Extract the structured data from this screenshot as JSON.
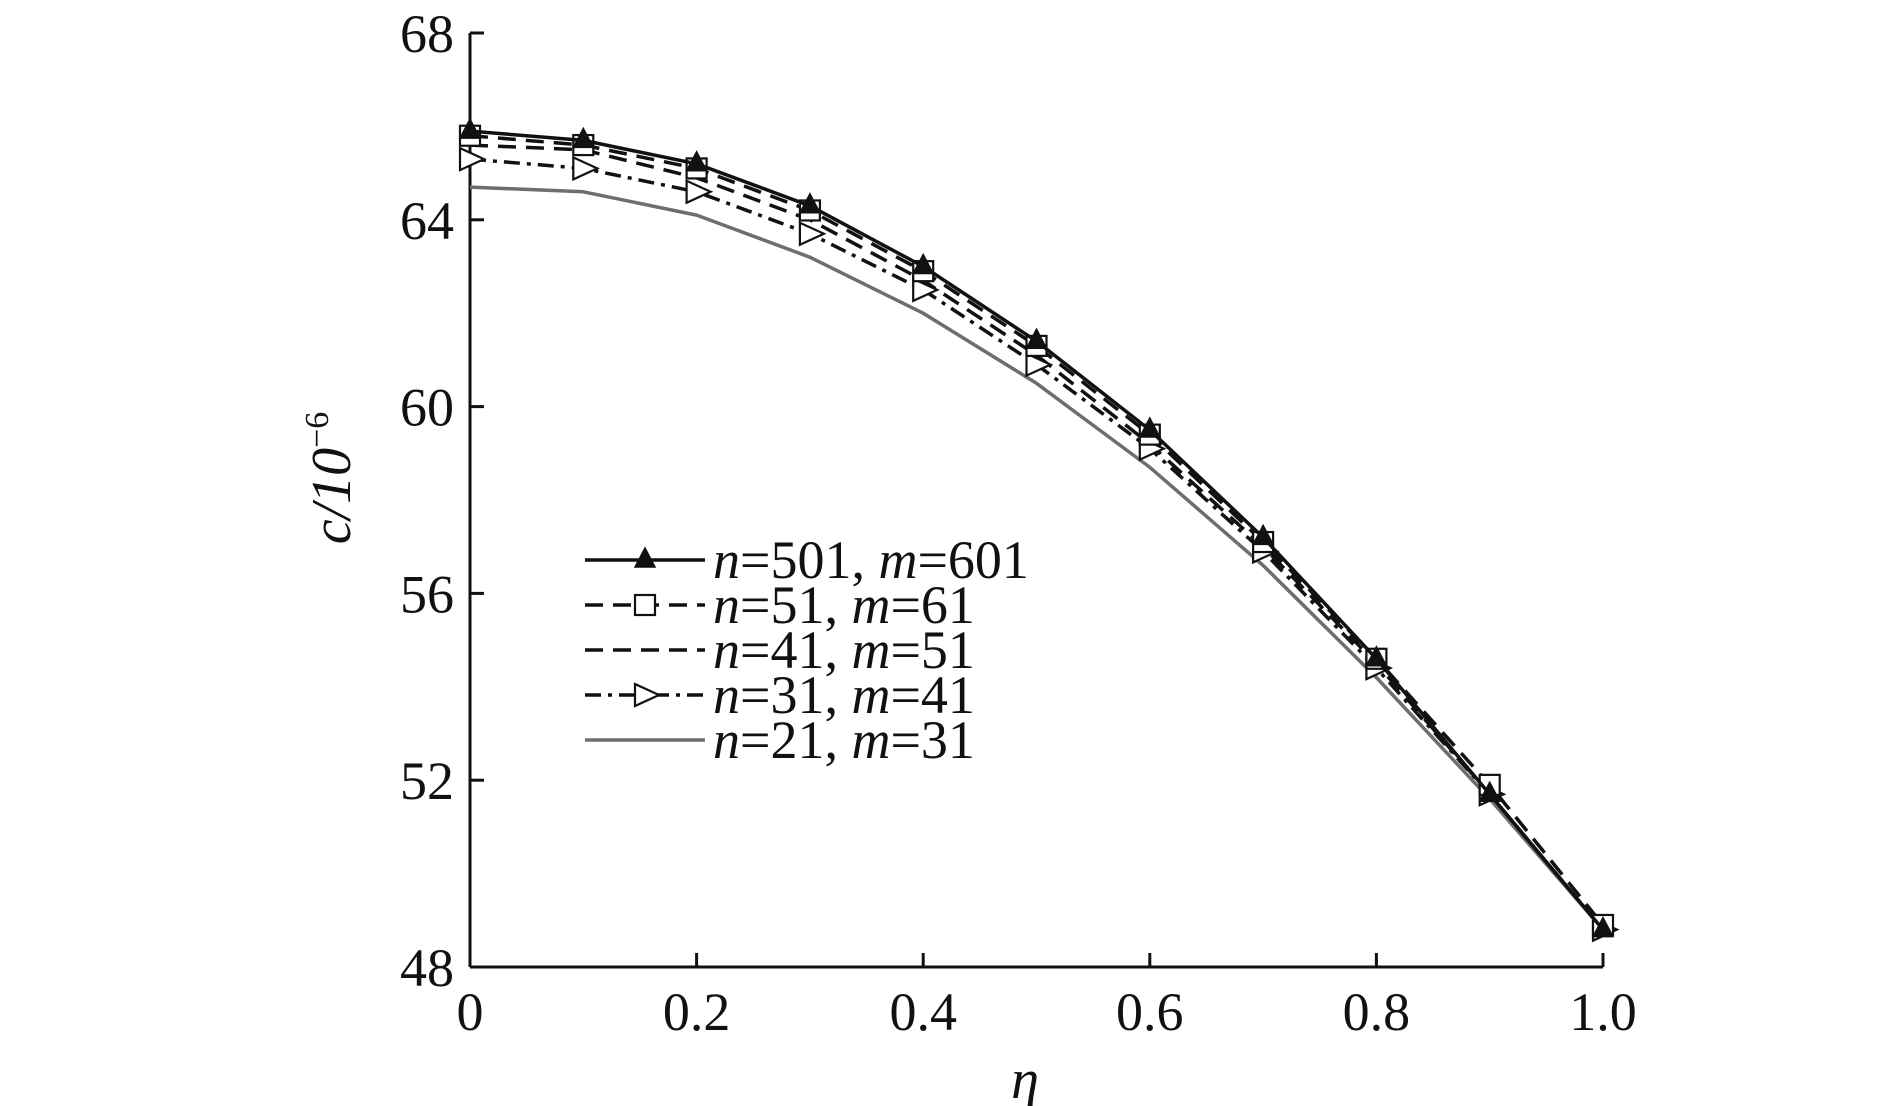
{
  "chart_data": {
    "type": "line",
    "title": "",
    "xlabel": "η",
    "ylabel": "c/10",
    "ylabel_exponent": "−6",
    "xlim": [
      0,
      1.0
    ],
    "ylim": [
      48,
      68
    ],
    "xticks": [
      0,
      0.2,
      0.4,
      0.6,
      0.8,
      1.0
    ],
    "xtick_labels": [
      "0",
      "0.2",
      "0.4",
      "0.6",
      "0.8",
      "1.0"
    ],
    "yticks": [
      48,
      52,
      56,
      60,
      64,
      68
    ],
    "ytick_labels": [
      "48",
      "52",
      "56",
      "60",
      "64",
      "68"
    ],
    "grid": false,
    "legend_position": "left-middle",
    "x": [
      0,
      0.1,
      0.2,
      0.3,
      0.4,
      0.5,
      0.6,
      0.7,
      0.8,
      0.9,
      1.0
    ],
    "series": [
      {
        "name": "n=501, m=601",
        "legend_parts": [
          [
            "n",
            "=501, "
          ],
          [
            "m",
            "=601"
          ]
        ],
        "values": [
          65.9,
          65.7,
          65.2,
          64.3,
          63.0,
          61.4,
          59.5,
          57.2,
          54.6,
          51.7,
          48.8
        ],
        "color": "#111111",
        "dash": "",
        "marker": "triangle-up-filled"
      },
      {
        "name": "n=51, m=61",
        "legend_parts": [
          [
            "n",
            "=51, "
          ],
          [
            "m",
            "=61"
          ]
        ],
        "values": [
          65.8,
          65.6,
          65.1,
          64.2,
          62.9,
          61.3,
          59.4,
          57.1,
          54.6,
          51.9,
          48.9
        ],
        "color": "#111111",
        "dash": "18,10",
        "marker": "square-open"
      },
      {
        "name": "n=41, m=51",
        "legend_parts": [
          [
            "n",
            "=41, "
          ],
          [
            "m",
            "=51"
          ]
        ],
        "values": [
          65.6,
          65.5,
          64.9,
          64.0,
          62.7,
          61.1,
          59.2,
          57.0,
          54.5,
          51.7,
          48.8
        ],
        "color": "#111111",
        "dash": "18,10",
        "marker": "none"
      },
      {
        "name": "n=31, m=41",
        "legend_parts": [
          [
            "n",
            "=31, "
          ],
          [
            "m",
            "=41"
          ]
        ],
        "values": [
          65.3,
          65.1,
          64.6,
          63.7,
          62.5,
          60.9,
          59.1,
          56.9,
          54.4,
          51.7,
          48.8
        ],
        "color": "#111111",
        "dash": "16,7,4,7",
        "marker": "triangle-right-open"
      },
      {
        "name": "n=21, m=31",
        "legend_parts": [
          [
            "n",
            "=21, "
          ],
          [
            "m",
            "=31"
          ]
        ],
        "values": [
          64.7,
          64.6,
          64.1,
          63.2,
          62.0,
          60.5,
          58.7,
          56.6,
          54.2,
          51.6,
          48.8
        ],
        "color": "#6e6e6e",
        "dash": "",
        "marker": "none"
      }
    ]
  }
}
